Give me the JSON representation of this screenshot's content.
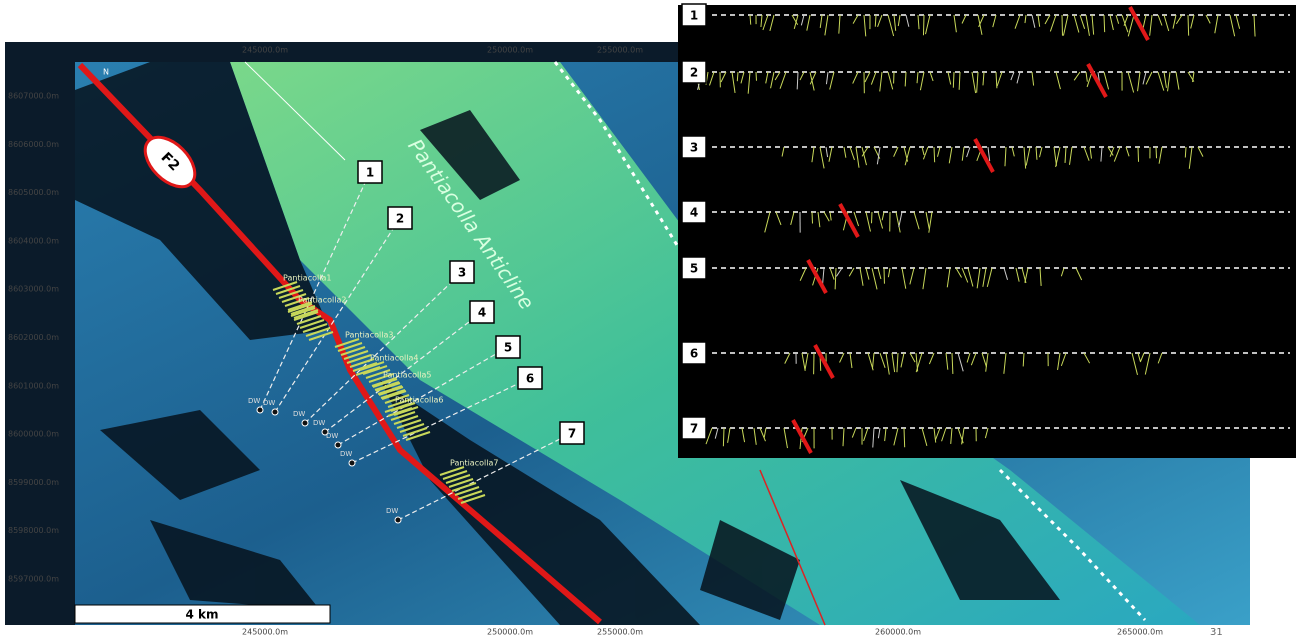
{
  "map": {
    "top_axis": [
      "245000.0m",
      "250000.0m",
      "255000.0m"
    ],
    "bottom_axis": [
      "245000.0m",
      "250000.0m",
      "255000.0m",
      "260000.0m",
      "265000.0m"
    ],
    "left_axis": [
      "8607000.0m",
      "8606000.0m",
      "8605000.0m",
      "8604000.0m",
      "8603000.0m",
      "8602000.0m",
      "8601000.0m",
      "8600000.0m",
      "8599000.0m",
      "8598000.0m",
      "8597000.0m"
    ],
    "fault_label": "F2",
    "anticline_label": "Pantiacolla Anticline",
    "scale_bar": "4 km",
    "north": "N",
    "section_markers": [
      "1",
      "2",
      "3",
      "4",
      "5",
      "6",
      "7"
    ],
    "wells": [
      "Pantiacolla1",
      "Pantiacolla2",
      "Pantiacolla3",
      "Pantiacolla4",
      "Pantiacolla5",
      "Pantiacolla6",
      "Pantiacolla7"
    ],
    "dw_labels": [
      "DW",
      "DW",
      "DW",
      "DW",
      "DW",
      "DW",
      "DW"
    ],
    "page_number": "31"
  },
  "inset": {
    "sections": [
      "1",
      "2",
      "3",
      "4",
      "5",
      "6",
      "7"
    ]
  }
}
